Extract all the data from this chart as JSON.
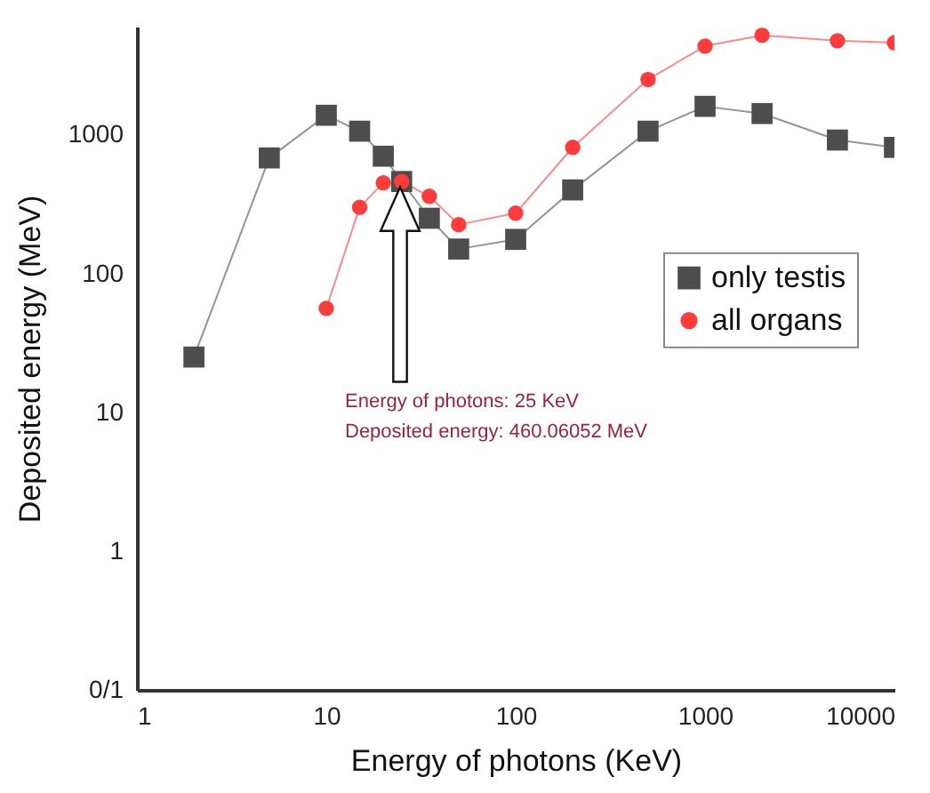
{
  "chart_data": {
    "type": "line",
    "xlabel": "Energy of photons (KeV)",
    "ylabel": "Deposited energy (MeV)",
    "x": [
      2,
      5,
      10,
      15,
      20,
      25,
      35,
      50,
      100,
      200,
      500,
      1000,
      2000,
      5000,
      10000
    ],
    "series": [
      {
        "name": "only testis",
        "color": "#4d4d4d",
        "marker": "square",
        "values": [
          25,
          680,
          1380,
          1060,
          700,
          460,
          250,
          150,
          176,
          400,
          1060,
          1600,
          1420,
          915,
          810
        ]
      },
      {
        "name": "all organs",
        "color": "#ff3b3b",
        "marker": "circle",
        "values": [
          null,
          null,
          56,
          300,
          450,
          460.06052,
          360,
          225,
          272,
          810,
          2500,
          4350,
          5200,
          4750,
          4600
        ]
      }
    ],
    "log": "xy",
    "xlim": [
      1,
      10000
    ],
    "xticks": [
      1,
      10,
      100,
      1000,
      10000
    ],
    "ylim": [
      0.1,
      6000
    ],
    "yticks": [
      {
        "value": 0.1,
        "label": "0/1"
      },
      1,
      10,
      100,
      1000
    ],
    "grid": false,
    "legend": "right",
    "line_style": "solid",
    "annotations": [
      "Energy of photons: 25 KeV\nDeposited energy: 460.06052 MeV"
    ]
  }
}
